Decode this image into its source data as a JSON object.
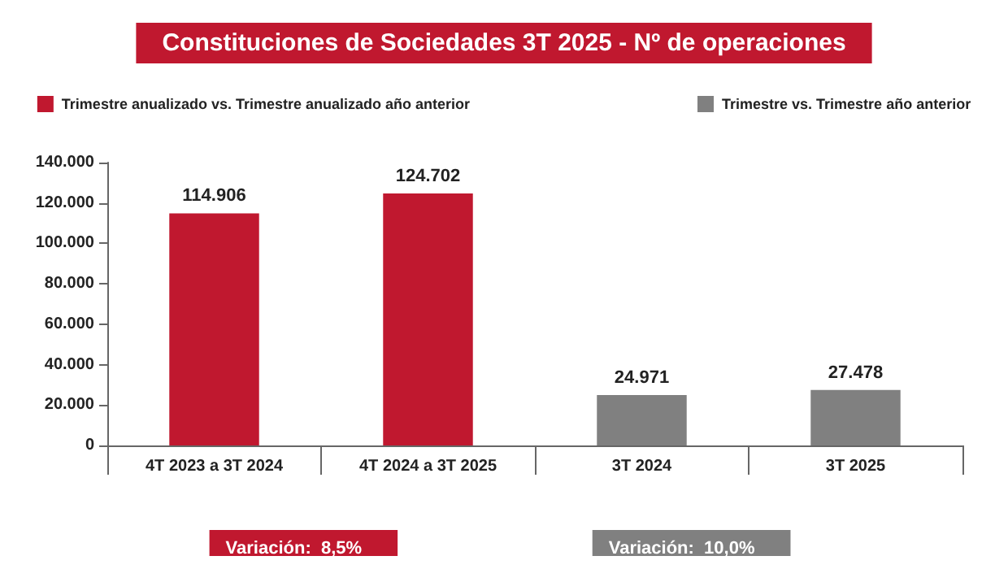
{
  "chart_data": {
    "type": "bar",
    "title": "Constituciones de Sociedades 3T 2025 - Nº de operaciones",
    "categories": [
      "4T 2023 a 3T 2024",
      "4T 2024 a 3T 2025",
      "3T 2024",
      "3T 2025"
    ],
    "series": [
      {
        "name": "Trimestre anualizado vs. Trimestre anualizado año anterior",
        "color": "#c0182f",
        "values": [
          114906,
          124702,
          null,
          null
        ],
        "value_labels": [
          "114.906",
          "124.702",
          null,
          null
        ]
      },
      {
        "name": "Trimestre vs. Trimestre año anterior",
        "color": "#808080",
        "values": [
          null,
          null,
          24971,
          27478
        ],
        "value_labels": [
          null,
          null,
          "24.971",
          "27.478"
        ]
      }
    ],
    "ylim": [
      0,
      140000
    ],
    "yticks": [
      {
        "value": 0,
        "label": "0"
      },
      {
        "value": 20000,
        "label": "20.000"
      },
      {
        "value": 40000,
        "label": "40.000"
      },
      {
        "value": 60000,
        "label": "60.000"
      },
      {
        "value": 80000,
        "label": "80.000"
      },
      {
        "value": 100000,
        "label": "100.000"
      },
      {
        "value": 120000,
        "label": "120.000"
      },
      {
        "value": 140000,
        "label": "140.000"
      }
    ],
    "legend": "top",
    "annotations": [
      "Variación:  8,5%",
      "Variación:  10,0%"
    ]
  }
}
